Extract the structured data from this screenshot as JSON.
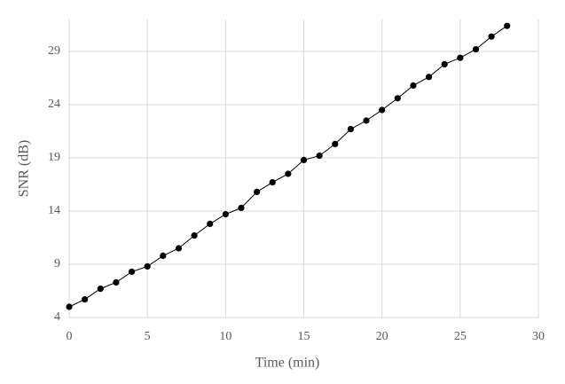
{
  "chart_data": {
    "type": "line",
    "x_label": "Time (min)",
    "y_label": "SNR (dB)",
    "x": [
      0,
      1,
      2,
      3,
      4,
      5,
      6,
      7,
      8,
      9,
      10,
      11,
      12,
      13,
      14,
      15,
      16,
      17,
      18,
      19,
      20,
      21,
      22,
      23,
      24,
      25,
      26,
      27,
      28
    ],
    "series": [
      {
        "color": "#000000",
        "values": [
          5.0,
          5.7,
          6.7,
          7.3,
          8.3,
          8.8,
          9.8,
          10.5,
          11.7,
          12.8,
          13.7,
          14.3,
          15.8,
          16.7,
          17.5,
          18.8,
          19.2,
          20.3,
          21.7,
          22.5,
          23.5,
          24.6,
          25.8,
          26.6,
          27.8,
          28.4,
          29.2,
          30.4,
          31.4
        ]
      }
    ],
    "xlim": [
      0,
      30
    ],
    "xticks": [
      0,
      5,
      10,
      15,
      20,
      25,
      30
    ],
    "ylim": [
      4,
      32
    ],
    "yticks": [
      4,
      9,
      14,
      19,
      24,
      29
    ],
    "grid": true
  }
}
